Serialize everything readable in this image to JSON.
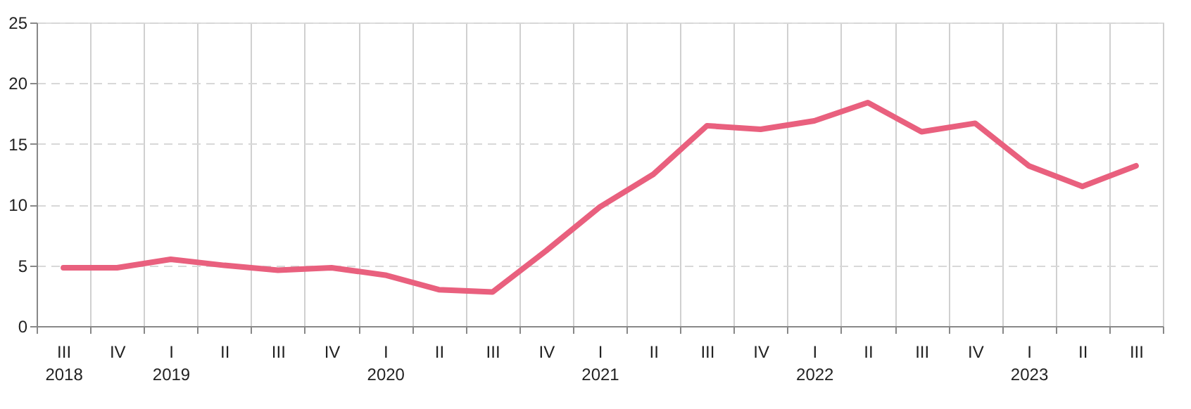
{
  "chart_data": {
    "type": "line",
    "categories": [
      "III 2018",
      "IV",
      "I 2019",
      "II",
      "III",
      "IV",
      "I 2020",
      "II",
      "III",
      "IV",
      "I 2021",
      "II",
      "III",
      "IV",
      "I 2022",
      "II",
      "III",
      "IV",
      "I 2023",
      "II",
      "III"
    ],
    "series": [
      {
        "color": "#e9607e",
        "values": [
          4.8,
          4.8,
          5.5,
          5.0,
          4.6,
          4.8,
          4.2,
          3.0,
          2.8,
          6.2,
          9.8,
          12.5,
          16.5,
          16.2,
          16.9,
          18.4,
          16.0,
          16.7,
          13.2,
          11.5,
          13.2
        ]
      }
    ],
    "ylim": [
      0,
      25
    ],
    "yticks": [
      0,
      5,
      10,
      15,
      20,
      25
    ],
    "grid": true,
    "legend": false,
    "marker": "none",
    "line_style": "solid"
  }
}
